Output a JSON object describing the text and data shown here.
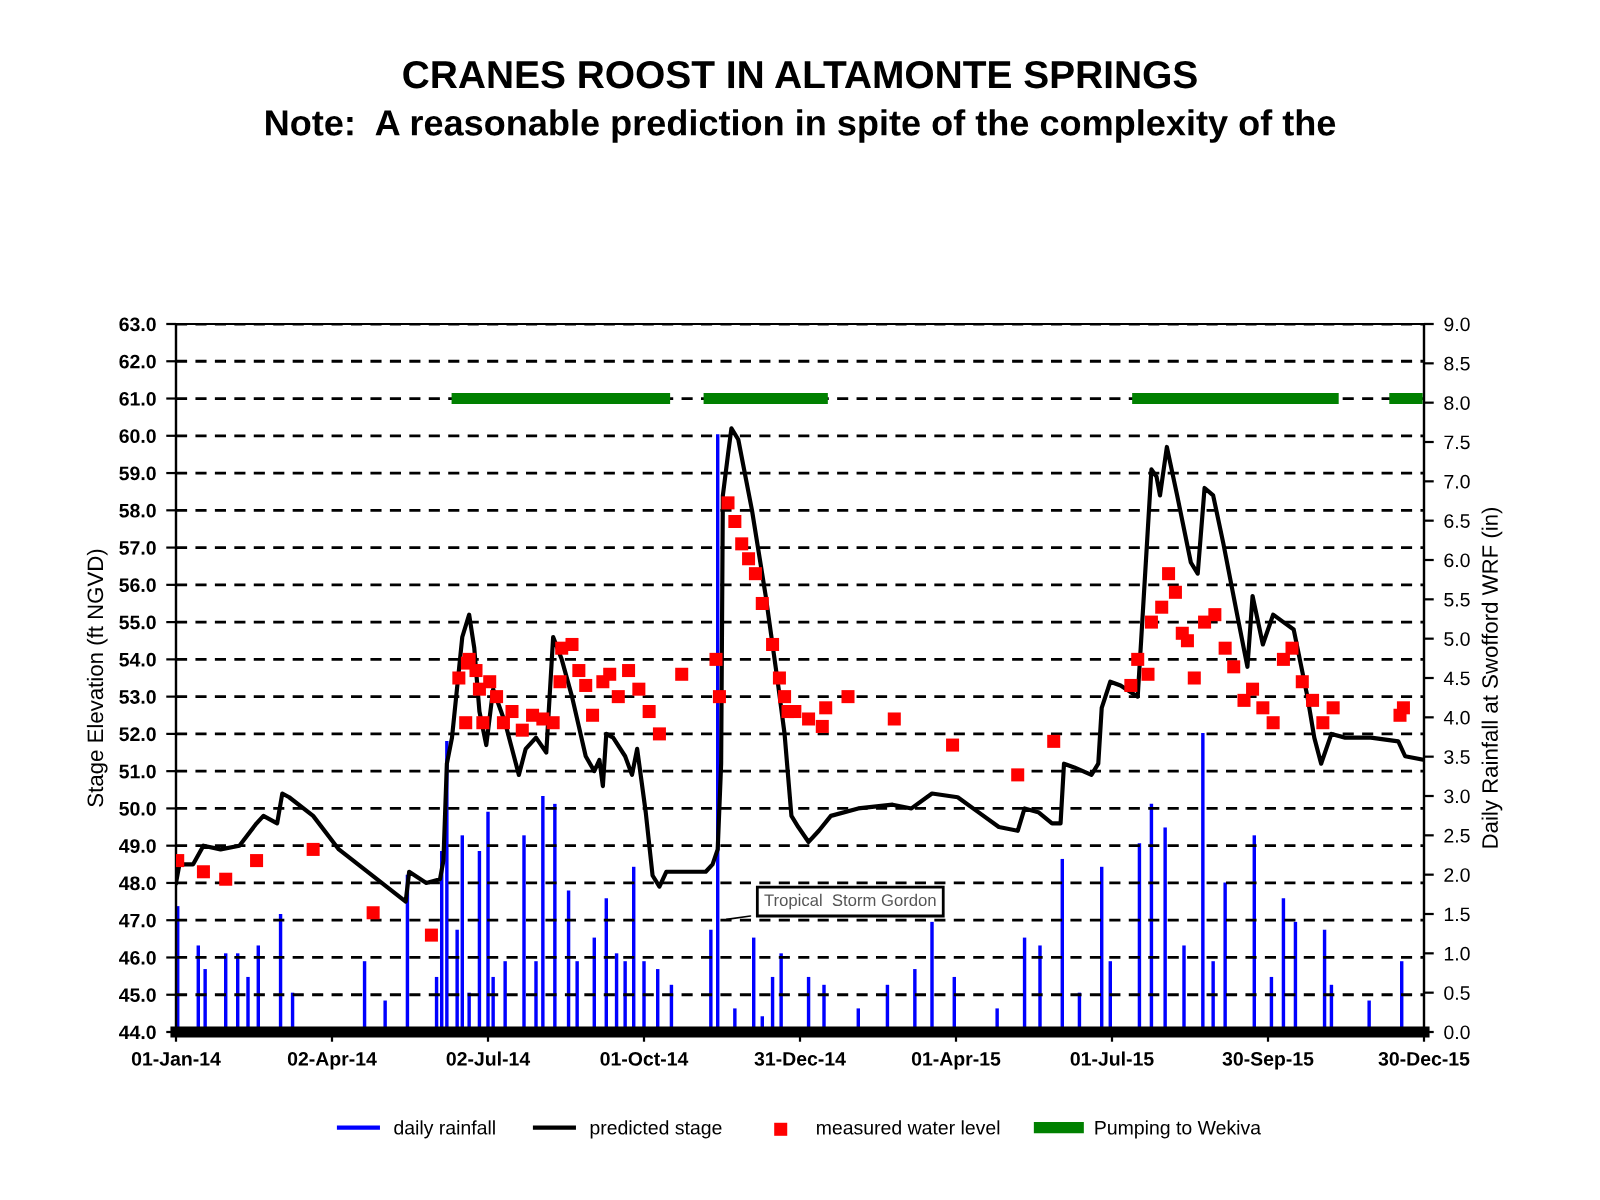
{
  "chart_data": {
    "type": "line",
    "title": "CRANES ROOST IN ALTAMONTE SPRINGS",
    "subtitle": "Note:  A reasonable prediction in spite of the complexity of the",
    "ylabel": "Stage Elevation (ft NGVD)",
    "y2label": "Daily Rainfall at Swofford WRF (in)",
    "xlim": [
      "2014-01-01",
      "2015-12-30"
    ],
    "xticks": [
      {
        "value": "2014-01-01",
        "label": "01-Jan-14"
      },
      {
        "value": "2014-04-02",
        "label": "02-Apr-14"
      },
      {
        "value": "2014-07-02",
        "label": "02-Jul-14"
      },
      {
        "value": "2014-10-01",
        "label": "01-Oct-14"
      },
      {
        "value": "2014-12-31",
        "label": "31-Dec-14"
      },
      {
        "value": "2015-04-01",
        "label": "01-Apr-15"
      },
      {
        "value": "2015-07-01",
        "label": "01-Jul-15"
      },
      {
        "value": "2015-09-30",
        "label": "30-Sep-15"
      },
      {
        "value": "2015-12-30",
        "label": "30-Dec-15"
      }
    ],
    "ylim": [
      44.0,
      63.0
    ],
    "yticks": [
      {
        "value": 44,
        "label": "44.0"
      },
      {
        "value": 45,
        "label": "45.0"
      },
      {
        "value": 46,
        "label": "46.0"
      },
      {
        "value": 47,
        "label": "47.0"
      },
      {
        "value": 48,
        "label": "48.0"
      },
      {
        "value": 49,
        "label": "49.0"
      },
      {
        "value": 50,
        "label": "50.0"
      },
      {
        "value": 51,
        "label": "51.0"
      },
      {
        "value": 52,
        "label": "52.0"
      },
      {
        "value": 53,
        "label": "53.0"
      },
      {
        "value": 54,
        "label": "54.0"
      },
      {
        "value": 55,
        "label": "55.0"
      },
      {
        "value": 56,
        "label": "56.0"
      },
      {
        "value": 57,
        "label": "57.0"
      },
      {
        "value": 58,
        "label": "58.0"
      },
      {
        "value": 59,
        "label": "59.0"
      },
      {
        "value": 60,
        "label": "60.0"
      },
      {
        "value": 61,
        "label": "61.0"
      },
      {
        "value": 62,
        "label": "62.0"
      },
      {
        "value": 63,
        "label": "63.0"
      }
    ],
    "y2lim": [
      0,
      9
    ],
    "y2ticks": [
      {
        "value": 0,
        "label": "0.0"
      },
      {
        "value": 0.5,
        "label": "0.5"
      },
      {
        "value": 1,
        "label": "1.0"
      },
      {
        "value": 1.5,
        "label": "1.5"
      },
      {
        "value": 2,
        "label": "2.0"
      },
      {
        "value": 2.5,
        "label": "2.5"
      },
      {
        "value": 3,
        "label": "3.0"
      },
      {
        "value": 3.5,
        "label": "3.5"
      },
      {
        "value": 4,
        "label": "4.0"
      },
      {
        "value": 4.5,
        "label": "4.5"
      },
      {
        "value": 5,
        "label": "5.0"
      },
      {
        "value": 5.5,
        "label": "5.5"
      },
      {
        "value": 6,
        "label": "6.0"
      },
      {
        "value": 6.5,
        "label": "6.5"
      },
      {
        "value": 7,
        "label": "7.0"
      },
      {
        "value": 7.5,
        "label": "7.5"
      },
      {
        "value": 8,
        "label": "8.0"
      },
      {
        "value": 8.5,
        "label": "8.5"
      },
      {
        "value": 9,
        "label": "9.0"
      }
    ],
    "grid": "y",
    "legend": "bottom",
    "annotations": [
      {
        "text": "Tropical  Storm Gordon",
        "x": "2014-11-15",
        "y": 47.0
      }
    ],
    "series": [
      {
        "name": "daily rainfall",
        "type": "bar",
        "axis": "y2",
        "color": "#0000ff",
        "x": [
          "2014-01-02",
          "2014-01-14",
          "2014-01-18",
          "2014-01-30",
          "2014-02-06",
          "2014-02-12",
          "2014-02-18",
          "2014-03-03",
          "2014-03-10",
          "2014-04-21",
          "2014-05-03",
          "2014-05-16",
          "2014-06-02",
          "2014-06-05",
          "2014-06-08",
          "2014-06-14",
          "2014-06-17",
          "2014-06-21",
          "2014-06-27",
          "2014-07-02",
          "2014-07-05",
          "2014-07-12",
          "2014-07-23",
          "2014-07-30",
          "2014-08-03",
          "2014-08-10",
          "2014-08-18",
          "2014-08-23",
          "2014-09-02",
          "2014-09-09",
          "2014-09-15",
          "2014-09-20",
          "2014-09-25",
          "2014-10-01",
          "2014-10-09",
          "2014-10-17",
          "2014-11-09",
          "2014-11-13",
          "2014-11-23",
          "2014-12-04",
          "2014-12-09",
          "2014-12-15",
          "2014-12-20",
          "2015-01-05",
          "2015-01-14",
          "2015-02-03",
          "2015-02-20",
          "2015-03-08",
          "2015-03-18",
          "2015-03-31",
          "2015-04-25",
          "2015-05-11",
          "2015-05-20",
          "2015-06-02",
          "2015-06-12",
          "2015-06-25",
          "2015-06-30",
          "2015-07-17",
          "2015-07-24",
          "2015-08-01",
          "2015-08-12",
          "2015-08-23",
          "2015-08-29",
          "2015-09-05",
          "2015-09-22",
          "2015-10-02",
          "2015-10-09",
          "2015-10-16",
          "2015-11-02",
          "2015-11-06",
          "2015-11-28",
          "2015-12-17"
        ],
        "values": [
          1.6,
          1.1,
          0.8,
          1.0,
          1.0,
          0.7,
          1.1,
          1.5,
          0.5,
          0.9,
          0.4,
          2.0,
          0.7,
          2.3,
          3.7,
          1.3,
          2.5,
          0.5,
          2.3,
          2.8,
          0.7,
          0.9,
          2.5,
          0.9,
          3.0,
          2.9,
          1.8,
          0.9,
          1.2,
          1.7,
          1.0,
          0.9,
          2.1,
          0.9,
          0.8,
          0.6,
          1.3,
          7.6,
          0.3,
          1.2,
          0.2,
          0.7,
          1.0,
          0.7,
          0.6,
          0.3,
          0.6,
          0.8,
          1.4,
          0.7,
          0.3,
          1.2,
          1.1,
          2.2,
          0.5,
          2.1,
          0.9,
          2.4,
          2.9,
          2.6,
          1.1,
          3.8,
          0.9,
          1.9,
          2.5,
          0.7,
          1.7,
          1.4,
          1.3,
          0.6,
          0.4,
          0.9
        ]
      },
      {
        "name": "predicted stage",
        "color": "#000000",
        "x": [
          "2014-01-01",
          "2014-01-03",
          "2014-01-11",
          "2014-01-17",
          "2014-01-27",
          "2014-02-07",
          "2014-02-17",
          "2014-02-21",
          "2014-03-01",
          "2014-03-04",
          "2014-03-08",
          "2014-03-22",
          "2014-04-06",
          "2014-04-20",
          "2014-05-15",
          "2014-05-17",
          "2014-05-27",
          "2014-06-04",
          "2014-06-06",
          "2014-06-08",
          "2014-06-11",
          "2014-06-17",
          "2014-06-21",
          "2014-06-24",
          "2014-06-27",
          "2014-07-01",
          "2014-07-05",
          "2014-07-12",
          "2014-07-20",
          "2014-07-24",
          "2014-07-30",
          "2014-08-05",
          "2014-08-09",
          "2014-08-14",
          "2014-08-20",
          "2014-08-28",
          "2014-09-02",
          "2014-09-05",
          "2014-09-07",
          "2014-09-09",
          "2014-09-13",
          "2014-09-20",
          "2014-09-24",
          "2014-09-27",
          "2014-10-02",
          "2014-10-06",
          "2014-10-10",
          "2014-10-14",
          "2014-10-25",
          "2014-11-06",
          "2014-11-10",
          "2014-11-13",
          "2014-11-15",
          "2014-11-16",
          "2014-11-19",
          "2014-11-21",
          "2014-11-25",
          "2014-12-03",
          "2014-12-11",
          "2014-12-18",
          "2014-12-22",
          "2014-12-26",
          "2014-12-30",
          "2015-01-05",
          "2015-01-11",
          "2015-01-18",
          "2015-02-03",
          "2015-02-23",
          "2015-03-06",
          "2015-03-18",
          "2015-04-02",
          "2015-04-14",
          "2015-04-26",
          "2015-05-07",
          "2015-05-11",
          "2015-05-19",
          "2015-05-27",
          "2015-06-01",
          "2015-06-03",
          "2015-06-09",
          "2015-06-19",
          "2015-06-23",
          "2015-06-25",
          "2015-06-30",
          "2015-07-06",
          "2015-07-16",
          "2015-07-18",
          "2015-07-24",
          "2015-07-27",
          "2015-07-29",
          "2015-08-02",
          "2015-08-08",
          "2015-08-16",
          "2015-08-20",
          "2015-08-24",
          "2015-08-29",
          "2015-09-04",
          "2015-09-12",
          "2015-09-18",
          "2015-09-21",
          "2015-09-27",
          "2015-10-03",
          "2015-10-09",
          "2015-10-15",
          "2015-10-23",
          "2015-10-27",
          "2015-10-31",
          "2015-11-06",
          "2015-11-14",
          "2015-11-29",
          "2015-12-15",
          "2015-12-19",
          "2015-12-30"
        ],
        "values": [
          48.0,
          48.5,
          48.5,
          49.0,
          48.9,
          49.0,
          49.6,
          49.8,
          49.6,
          50.4,
          50.3,
          49.8,
          48.9,
          48.4,
          47.5,
          48.3,
          48.0,
          48.1,
          48.6,
          51.2,
          51.9,
          54.6,
          55.2,
          54.3,
          52.6,
          51.7,
          53.2,
          52.3,
          50.9,
          51.6,
          51.9,
          51.5,
          54.6,
          54.0,
          53.0,
          51.4,
          51.0,
          51.3,
          50.6,
          52.0,
          51.9,
          51.4,
          50.9,
          51.6,
          49.9,
          48.2,
          47.9,
          48.3,
          48.3,
          48.3,
          48.5,
          48.9,
          51.2,
          58.4,
          59.5,
          60.2,
          59.9,
          58.0,
          55.7,
          53.4,
          52.0,
          49.8,
          49.5,
          49.1,
          49.4,
          49.8,
          50.0,
          50.1,
          50.0,
          50.4,
          50.3,
          49.9,
          49.5,
          49.4,
          50.0,
          49.9,
          49.6,
          49.6,
          51.2,
          51.1,
          50.9,
          51.2,
          52.7,
          53.4,
          53.3,
          53.0,
          54.5,
          59.1,
          58.9,
          58.4,
          59.7,
          58.4,
          56.6,
          56.3,
          58.6,
          58.4,
          57.1,
          55.2,
          53.8,
          55.7,
          54.4,
          55.2,
          55.0,
          54.8,
          53.0,
          51.9,
          51.2,
          52.0,
          51.9,
          51.9,
          51.8,
          51.4,
          51.3
        ]
      },
      {
        "name": "measured water level",
        "type": "scatter",
        "marker": "square",
        "color": "#ff0000",
        "x": [
          "2014-01-02",
          "2014-01-17",
          "2014-01-30",
          "2014-02-17",
          "2014-03-22",
          "2014-04-26",
          "2014-05-30",
          "2014-06-15",
          "2014-06-19",
          "2014-06-20",
          "2014-06-21",
          "2014-06-25",
          "2014-06-27",
          "2014-06-29",
          "2014-07-03",
          "2014-07-07",
          "2014-07-11",
          "2014-07-16",
          "2014-07-22",
          "2014-07-28",
          "2014-08-03",
          "2014-08-09",
          "2014-08-13",
          "2014-08-14",
          "2014-08-20",
          "2014-08-24",
          "2014-08-28",
          "2014-09-01",
          "2014-09-07",
          "2014-09-11",
          "2014-09-16",
          "2014-09-22",
          "2014-09-28",
          "2014-10-04",
          "2014-10-10",
          "2014-10-23",
          "2014-11-12",
          "2014-11-14",
          "2014-11-19",
          "2014-11-23",
          "2014-11-27",
          "2014-12-01",
          "2014-12-05",
          "2014-12-09",
          "2014-12-15",
          "2014-12-19",
          "2014-12-22",
          "2014-12-24",
          "2014-12-28",
          "2015-01-05",
          "2015-01-13",
          "2015-01-15",
          "2015-01-28",
          "2015-02-24",
          "2015-03-30",
          "2015-05-07",
          "2015-05-28",
          "2015-07-12",
          "2015-07-16",
          "2015-07-22",
          "2015-07-24",
          "2015-07-30",
          "2015-08-03",
          "2015-08-07",
          "2015-08-11",
          "2015-08-14",
          "2015-08-18",
          "2015-08-24",
          "2015-08-30",
          "2015-09-05",
          "2015-09-10",
          "2015-09-16",
          "2015-09-21",
          "2015-09-27",
          "2015-10-03",
          "2015-10-09",
          "2015-10-14",
          "2015-10-20",
          "2015-10-26",
          "2015-11-01",
          "2015-11-07",
          "2015-12-16",
          "2015-12-18"
        ],
        "values": [
          48.6,
          48.3,
          48.1,
          48.6,
          48.9,
          47.2,
          46.6,
          53.5,
          52.3,
          53.9,
          54.0,
          53.7,
          53.2,
          52.3,
          53.4,
          53.0,
          52.3,
          52.6,
          52.1,
          52.5,
          52.4,
          52.3,
          53.4,
          54.3,
          54.4,
          53.7,
          53.3,
          52.5,
          53.4,
          53.6,
          53.0,
          53.7,
          53.2,
          52.6,
          52.0,
          53.6,
          54.0,
          53.0,
          58.2,
          57.7,
          57.1,
          56.7,
          56.3,
          55.5,
          54.4,
          53.5,
          53.0,
          52.6,
          52.6,
          52.4,
          52.2,
          52.7,
          53.0,
          52.4,
          51.7,
          50.9,
          51.8,
          53.3,
          54.0,
          53.6,
          55.0,
          55.4,
          56.3,
          55.8,
          54.7,
          54.5,
          53.5,
          55.0,
          55.2,
          54.3,
          53.8,
          52.9,
          53.2,
          52.7,
          52.3,
          54.0,
          54.3,
          53.4,
          52.9,
          52.3,
          52.7,
          52.5,
          52.7
        ]
      },
      {
        "name": "Pumping to Wekiva",
        "type": "line",
        "color": "#008000",
        "x": [
          "2014-06-14",
          "2014-10-13",
          "2014-10-25",
          "2014-11-08",
          "2015-01-13",
          "2015-04-01",
          "2015-07-16",
          "2015-11-07",
          "2015-11-25",
          "2015-12-13",
          "2015-12-26"
        ],
        "values": [
          61,
          61,
          null,
          61,
          61,
          null,
          61,
          61,
          null,
          61,
          61
        ]
      }
    ]
  }
}
